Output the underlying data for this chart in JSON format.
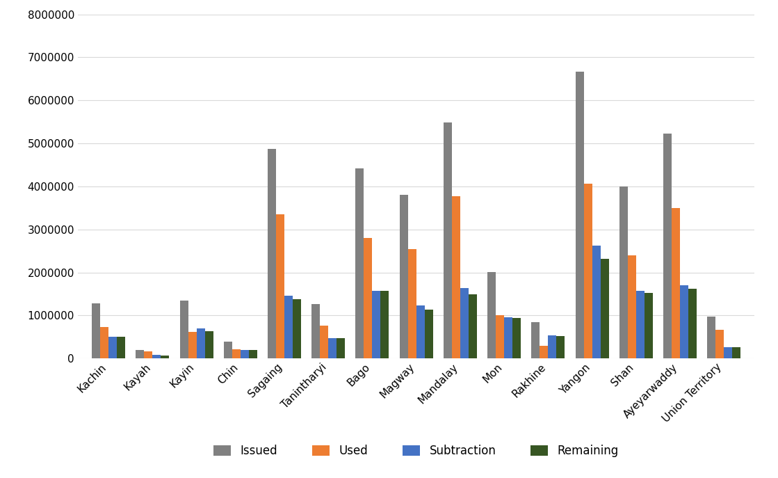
{
  "categories": [
    "Kachin",
    "Kayah",
    "Kayin",
    "Chin",
    "Sagaing",
    "Tanintharyi",
    "Bago",
    "Magway",
    "Mandalay",
    "Mon",
    "Rakhine",
    "Yangon",
    "Shan",
    "Ayeyarwaddy",
    "Union Territory"
  ],
  "issued": [
    1280000,
    200000,
    1340000,
    390000,
    4870000,
    1260000,
    4420000,
    3800000,
    5480000,
    2010000,
    840000,
    6660000,
    4000000,
    5230000,
    970000
  ],
  "used": [
    730000,
    170000,
    620000,
    220000,
    3360000,
    760000,
    2800000,
    2550000,
    3780000,
    1010000,
    300000,
    4070000,
    2400000,
    3500000,
    670000
  ],
  "subtraction": [
    510000,
    90000,
    700000,
    200000,
    1460000,
    480000,
    1570000,
    1230000,
    1640000,
    960000,
    530000,
    2620000,
    1580000,
    1710000,
    270000
  ],
  "remaining": [
    510000,
    70000,
    640000,
    200000,
    1380000,
    470000,
    1580000,
    1130000,
    1490000,
    940000,
    520000,
    2320000,
    1520000,
    1620000,
    270000
  ],
  "colors": {
    "issued": "#808080",
    "used": "#ED7D31",
    "subtraction": "#4472C4",
    "remaining": "#375623"
  },
  "legend_labels": [
    "Issued",
    "Used",
    "Subtraction",
    "Remaining"
  ],
  "ylim": [
    0,
    8000000
  ],
  "yticks": [
    0,
    1000000,
    2000000,
    3000000,
    4000000,
    5000000,
    6000000,
    7000000,
    8000000
  ],
  "grid_color": "#D9D9D9",
  "background_color": "#FFFFFF",
  "bar_width": 0.19,
  "tick_fontsize": 11,
  "legend_fontsize": 12
}
